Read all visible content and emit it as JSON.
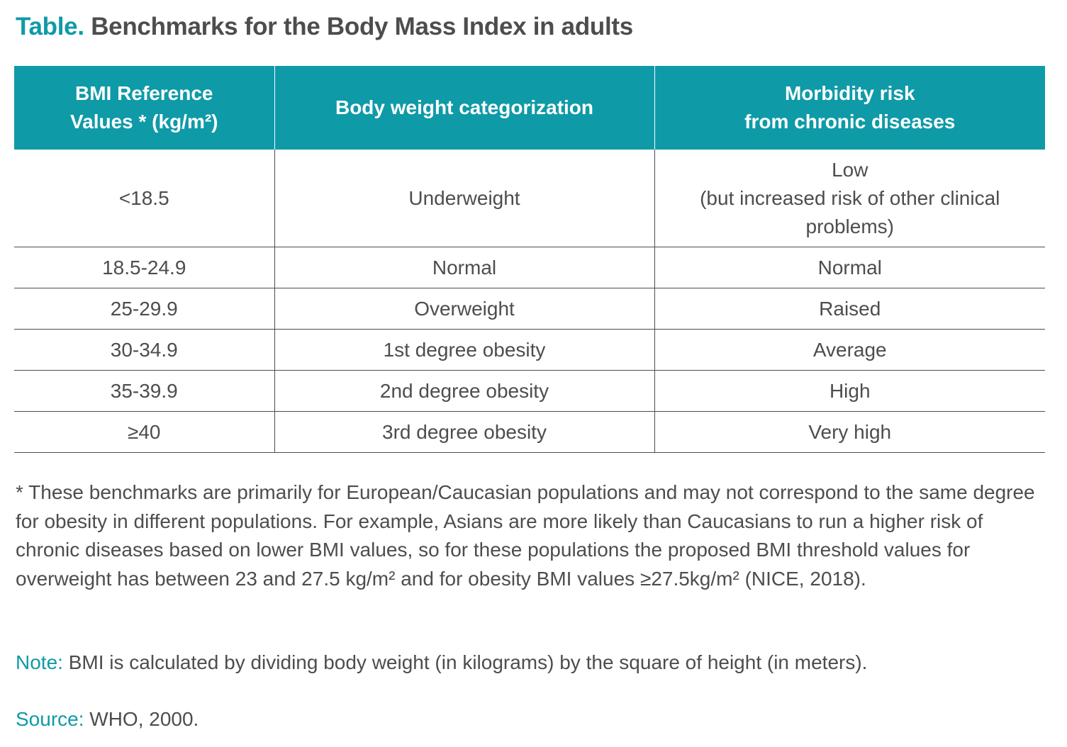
{
  "title": {
    "prefix": "Table.",
    "text": "Benchmarks for the Body Mass Index in adults"
  },
  "table": {
    "headers": [
      [
        "BMI Reference",
        "Values * (kg/m²)"
      ],
      [
        "Body weight categorization"
      ],
      [
        "Morbidity risk",
        "from chronic diseases"
      ]
    ],
    "rows": [
      {
        "bmi": "<18.5",
        "category": "Underweight",
        "risk": [
          "Low",
          "(but increased risk of other clinical",
          "problems)"
        ]
      },
      {
        "bmi": "18.5-24.9",
        "category": "Normal",
        "risk": [
          "Normal"
        ]
      },
      {
        "bmi": "25-29.9",
        "category": "Overweight",
        "risk": [
          "Raised"
        ]
      },
      {
        "bmi": "30-34.9",
        "category": "1st degree obesity",
        "risk": [
          "Average"
        ]
      },
      {
        "bmi": "35-39.9",
        "category": "2nd degree obesity",
        "risk": [
          "High"
        ]
      },
      {
        "bmi": "≥40",
        "category": "3rd degree obesity",
        "risk": [
          "Very high"
        ]
      }
    ]
  },
  "footnote": "* These benchmarks are primarily for European/Caucasian populations and may not correspond to the same degree for obesity in different populations. For example, Asians are more likely than Caucasians to run a higher risk of chronic diseases based on lower BMI values, so for these populations the proposed BMI threshold values for overweight  has between 23 and 27.5 kg/m² and for obesity BMI values ≥27.5kg/m² (NICE, 2018).",
  "note": {
    "label": "Note:",
    "text": " BMI is calculated by dividing body weight (in kilograms) by the square of height (in meters)."
  },
  "source": {
    "label": "Source:",
    "text": " WHO, 2000."
  },
  "colors": {
    "accent": "#0f9aa8",
    "text": "#4d4d4f",
    "header_text": "#ffffff"
  }
}
